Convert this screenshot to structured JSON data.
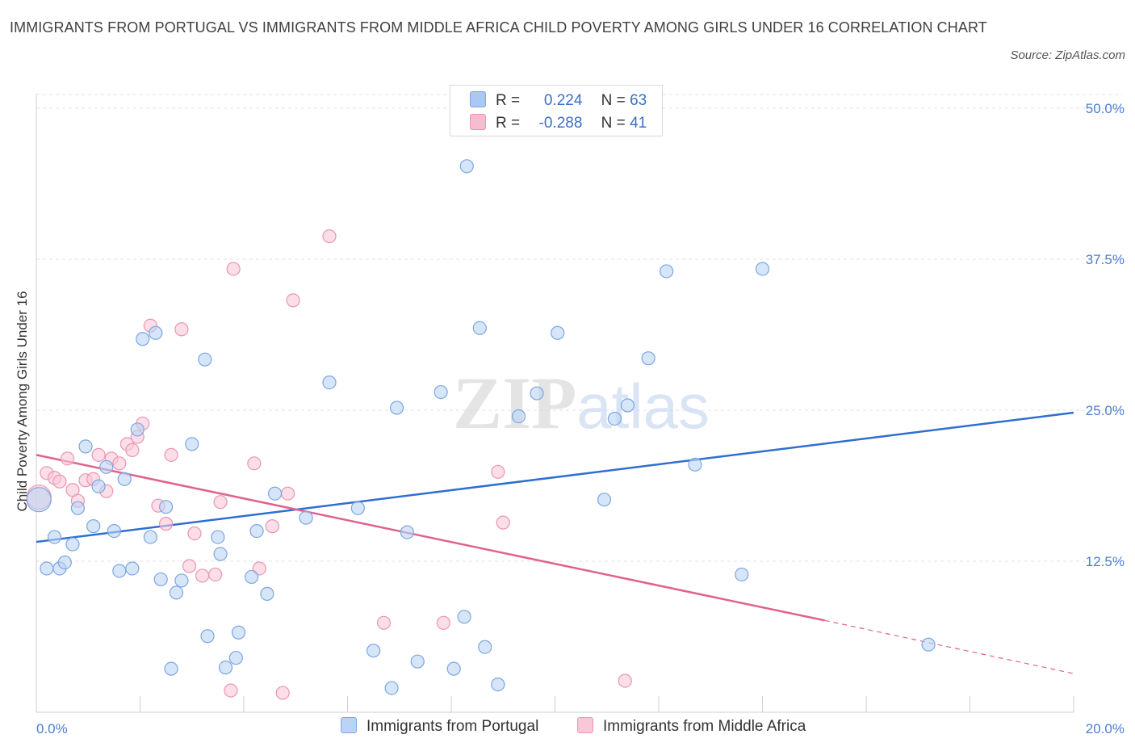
{
  "title": "IMMIGRANTS FROM PORTUGAL VS IMMIGRANTS FROM MIDDLE AFRICA CHILD POVERTY AMONG GIRLS UNDER 16 CORRELATION CHART",
  "source": "Source: ZipAtlas.com",
  "watermark": "ZIPatlas",
  "legend": {
    "r_label": "R =",
    "n_label": "N =",
    "rows": [
      {
        "r": "0.224",
        "n": "63",
        "color": "#aac8f2"
      },
      {
        "r": "-0.288",
        "n": "41",
        "color": "#f6bcd0"
      }
    ]
  },
  "colors": {
    "blue_fill": "#bcd4f4",
    "blue_stroke": "#7aa7e0",
    "blue_line": "#2e6fd1",
    "pink_fill": "#f8c8d8",
    "pink_stroke": "#eb95b2",
    "pink_line": "#e0628e"
  },
  "chart_data": {
    "type": "scatter",
    "ylabel": "Child Poverty Among Girls Under 16",
    "xlim": [
      0,
      20
    ],
    "ylim": [
      0,
      50
    ],
    "x_tick_labels": [
      "0.0%",
      "20.0%"
    ],
    "y_ticks": [
      12.5,
      25,
      37.5,
      50
    ],
    "y_tick_labels": [
      "12.5%",
      "25.0%",
      "37.5%",
      "50.0%"
    ],
    "grid": true,
    "series": [
      {
        "name": "Immigrants from Portugal",
        "color": "#bcd4f4",
        "trend": {
          "x0": 0,
          "y0": 14.1,
          "x1": 20,
          "y1": 24.8
        },
        "points": [
          [
            0.05,
            17.6
          ],
          [
            0.2,
            11.9
          ],
          [
            0.35,
            14.5
          ],
          [
            0.45,
            11.9
          ],
          [
            0.55,
            12.4
          ],
          [
            0.7,
            13.9
          ],
          [
            0.8,
            16.9
          ],
          [
            0.95,
            22.0
          ],
          [
            1.1,
            15.4
          ],
          [
            1.2,
            18.7
          ],
          [
            1.35,
            20.3
          ],
          [
            1.5,
            15.0
          ],
          [
            1.6,
            11.7
          ],
          [
            1.7,
            19.3
          ],
          [
            1.85,
            11.9
          ],
          [
            1.95,
            23.4
          ],
          [
            2.05,
            30.9
          ],
          [
            2.2,
            14.5
          ],
          [
            2.3,
            31.4
          ],
          [
            2.4,
            11.0
          ],
          [
            2.5,
            17.0
          ],
          [
            2.6,
            3.6
          ],
          [
            2.7,
            9.9
          ],
          [
            2.8,
            10.9
          ],
          [
            3.0,
            22.2
          ],
          [
            3.25,
            29.2
          ],
          [
            3.3,
            6.3
          ],
          [
            3.5,
            14.5
          ],
          [
            3.55,
            13.1
          ],
          [
            3.65,
            3.7
          ],
          [
            3.85,
            4.5
          ],
          [
            3.9,
            6.6
          ],
          [
            4.15,
            11.2
          ],
          [
            4.25,
            15.0
          ],
          [
            4.45,
            9.8
          ],
          [
            4.6,
            18.1
          ],
          [
            5.2,
            16.1
          ],
          [
            5.65,
            27.3
          ],
          [
            6.2,
            16.9
          ],
          [
            6.5,
            5.1
          ],
          [
            6.85,
            2.0
          ],
          [
            6.95,
            25.2
          ],
          [
            7.15,
            14.9
          ],
          [
            7.35,
            4.2
          ],
          [
            7.8,
            26.5
          ],
          [
            8.05,
            3.6
          ],
          [
            8.25,
            7.9
          ],
          [
            8.3,
            45.2
          ],
          [
            8.55,
            31.8
          ],
          [
            8.65,
            5.4
          ],
          [
            8.9,
            2.3
          ],
          [
            9.3,
            24.5
          ],
          [
            9.65,
            26.4
          ],
          [
            10.05,
            31.4
          ],
          [
            10.95,
            17.6
          ],
          [
            11.15,
            24.3
          ],
          [
            11.4,
            25.4
          ],
          [
            11.8,
            29.3
          ],
          [
            12.15,
            36.5
          ],
          [
            12.7,
            20.5
          ],
          [
            13.6,
            11.4
          ],
          [
            14.0,
            36.7
          ],
          [
            17.2,
            5.6
          ]
        ],
        "sizes_note": "one larger bubble at the first point"
      },
      {
        "name": "Immigrants from Middle Africa",
        "color": "#f8c8d8",
        "trend": {
          "x0": 0,
          "y0": 21.3,
          "x1": 15.2,
          "y1": 7.6,
          "x_dash_end": 20,
          "y_dash_end": 3.2
        },
        "points": [
          [
            0.05,
            17.8
          ],
          [
            0.2,
            19.8
          ],
          [
            0.35,
            19.4
          ],
          [
            0.45,
            19.1
          ],
          [
            0.6,
            21.0
          ],
          [
            0.7,
            18.4
          ],
          [
            0.8,
            17.5
          ],
          [
            0.95,
            19.2
          ],
          [
            1.1,
            19.3
          ],
          [
            1.2,
            21.3
          ],
          [
            1.35,
            18.3
          ],
          [
            1.45,
            21.0
          ],
          [
            1.6,
            20.6
          ],
          [
            1.75,
            22.2
          ],
          [
            1.85,
            21.7
          ],
          [
            1.95,
            22.8
          ],
          [
            2.05,
            23.9
          ],
          [
            2.2,
            32.0
          ],
          [
            2.35,
            17.1
          ],
          [
            2.5,
            15.6
          ],
          [
            2.6,
            21.3
          ],
          [
            2.8,
            31.7
          ],
          [
            2.95,
            12.1
          ],
          [
            3.05,
            14.8
          ],
          [
            3.2,
            11.3
          ],
          [
            3.45,
            11.4
          ],
          [
            3.55,
            17.4
          ],
          [
            3.75,
            1.8
          ],
          [
            3.8,
            36.7
          ],
          [
            4.2,
            20.6
          ],
          [
            4.3,
            11.9
          ],
          [
            4.55,
            15.4
          ],
          [
            4.75,
            1.6
          ],
          [
            4.85,
            18.1
          ],
          [
            4.95,
            34.1
          ],
          [
            5.65,
            39.4
          ],
          [
            6.7,
            7.4
          ],
          [
            7.85,
            7.4
          ],
          [
            8.9,
            19.9
          ],
          [
            9.0,
            15.7
          ],
          [
            11.35,
            2.6
          ]
        ]
      }
    ]
  }
}
